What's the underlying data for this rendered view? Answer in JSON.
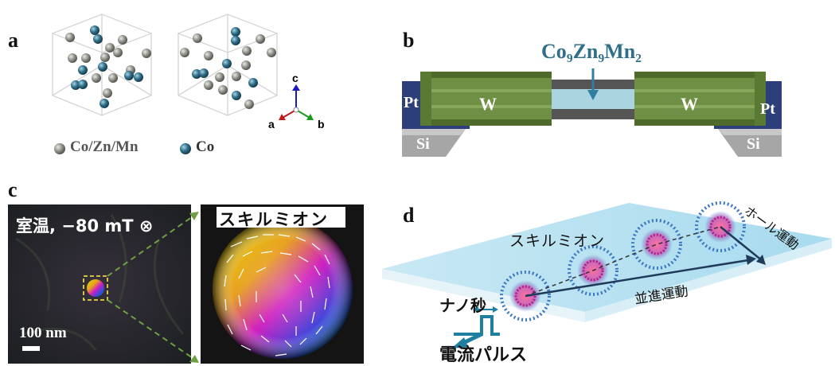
{
  "panels": {
    "a": {
      "letter": "a",
      "axes": {
        "c": "c",
        "a": "a",
        "b": "b"
      },
      "legend": [
        {
          "label": "Co/Zn/Mn",
          "color": "#8c8c86"
        },
        {
          "label": "Co",
          "color": "#2f6f8a"
        }
      ]
    },
    "b": {
      "letter": "b",
      "material": "Co₉Zn₉Mn₂",
      "left_electrode": "Pt",
      "right_electrode": "Pt",
      "left_layer": "W",
      "right_layer": "W",
      "left_substrate": "Si",
      "right_substrate": "Si"
    },
    "c": {
      "letter": "c",
      "condition": "室温, −80 mT ⊗",
      "scale_bar": "100 nm",
      "inset_title": "スキルミオン"
    },
    "d": {
      "letter": "d",
      "skyrmion_label": "スキルミオン",
      "hall_motion": "ホール運動",
      "translational_motion": "並進運動",
      "pulse_duration": "ナノ秒",
      "current_pulse": "電流パルス"
    }
  },
  "colors": {
    "w_green": "#6f8f45",
    "w_green_dark": "#4f6b2c",
    "pt_blue": "#2c3f7a",
    "channel_blue": "#a9d4e0",
    "si_gray": "#a6a6a6",
    "arrow_teal": "#2f7fa0"
  }
}
